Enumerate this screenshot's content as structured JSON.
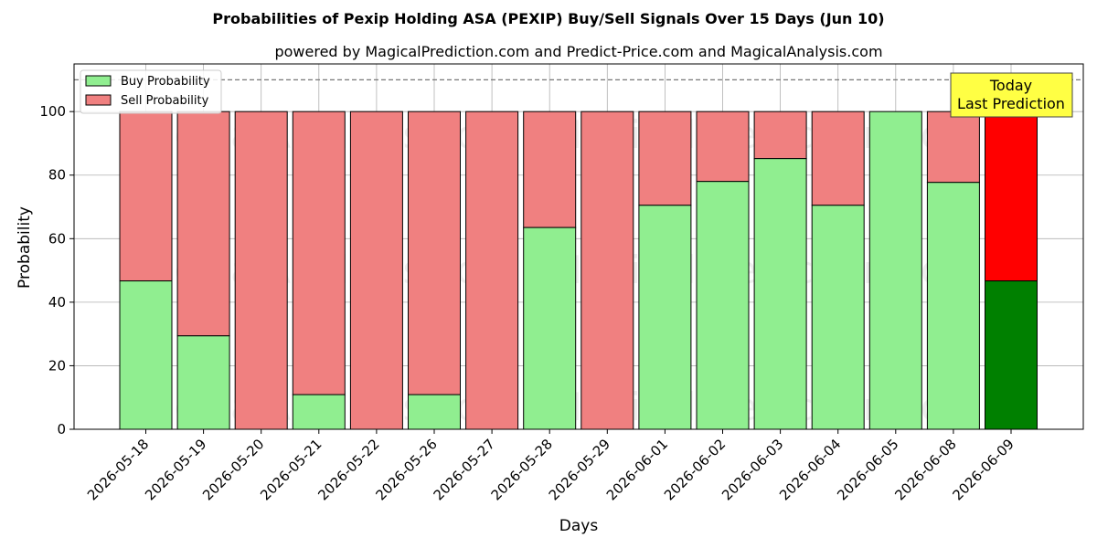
{
  "chart_data": {
    "type": "bar",
    "stacked": true,
    "title": "Probabilities of Pexip Holding ASA (PEXIP) Buy/Sell Signals Over 15 Days (Jun 10)",
    "subtitle": "powered by MagicalPrediction.com and Predict-Price.com and MagicalAnalysis.com",
    "xlabel": "Days",
    "ylabel": "Probability",
    "ylim": [
      0,
      115
    ],
    "yticks": [
      0,
      20,
      40,
      60,
      80,
      100
    ],
    "reference_line": 110,
    "grid": true,
    "legend_position": "top-left",
    "categories": [
      "2026-05-18",
      "2026-05-19",
      "2026-05-20",
      "2026-05-21",
      "2026-05-22",
      "2026-05-26",
      "2026-05-27",
      "2026-05-28",
      "2026-05-29",
      "2026-06-01",
      "2026-06-02",
      "2026-06-03",
      "2026-06-04",
      "2026-06-05",
      "2026-06-08",
      "2026-06-09"
    ],
    "series": [
      {
        "name": "Buy Probability",
        "color": "#90ee90",
        "highlight_color": "#008000",
        "values": [
          46.7,
          29.4,
          0,
          10.9,
          0,
          10.9,
          0,
          63.5,
          0,
          70.5,
          78.0,
          85.2,
          70.5,
          100,
          77.7,
          46.7
        ]
      },
      {
        "name": "Sell Probability",
        "color": "#f08080",
        "highlight_color": "#ff0000",
        "values": [
          53.3,
          70.6,
          100,
          89.1,
          100,
          89.1,
          100,
          36.5,
          100,
          29.5,
          22.0,
          14.8,
          29.5,
          0,
          22.3,
          53.3
        ]
      }
    ],
    "annotation": {
      "lines": [
        "Today",
        "Last Prediction"
      ],
      "color": "#ffff44"
    },
    "watermarks": [
      "MagicalAnalysis.com",
      "MagicalPrediction.com"
    ]
  }
}
